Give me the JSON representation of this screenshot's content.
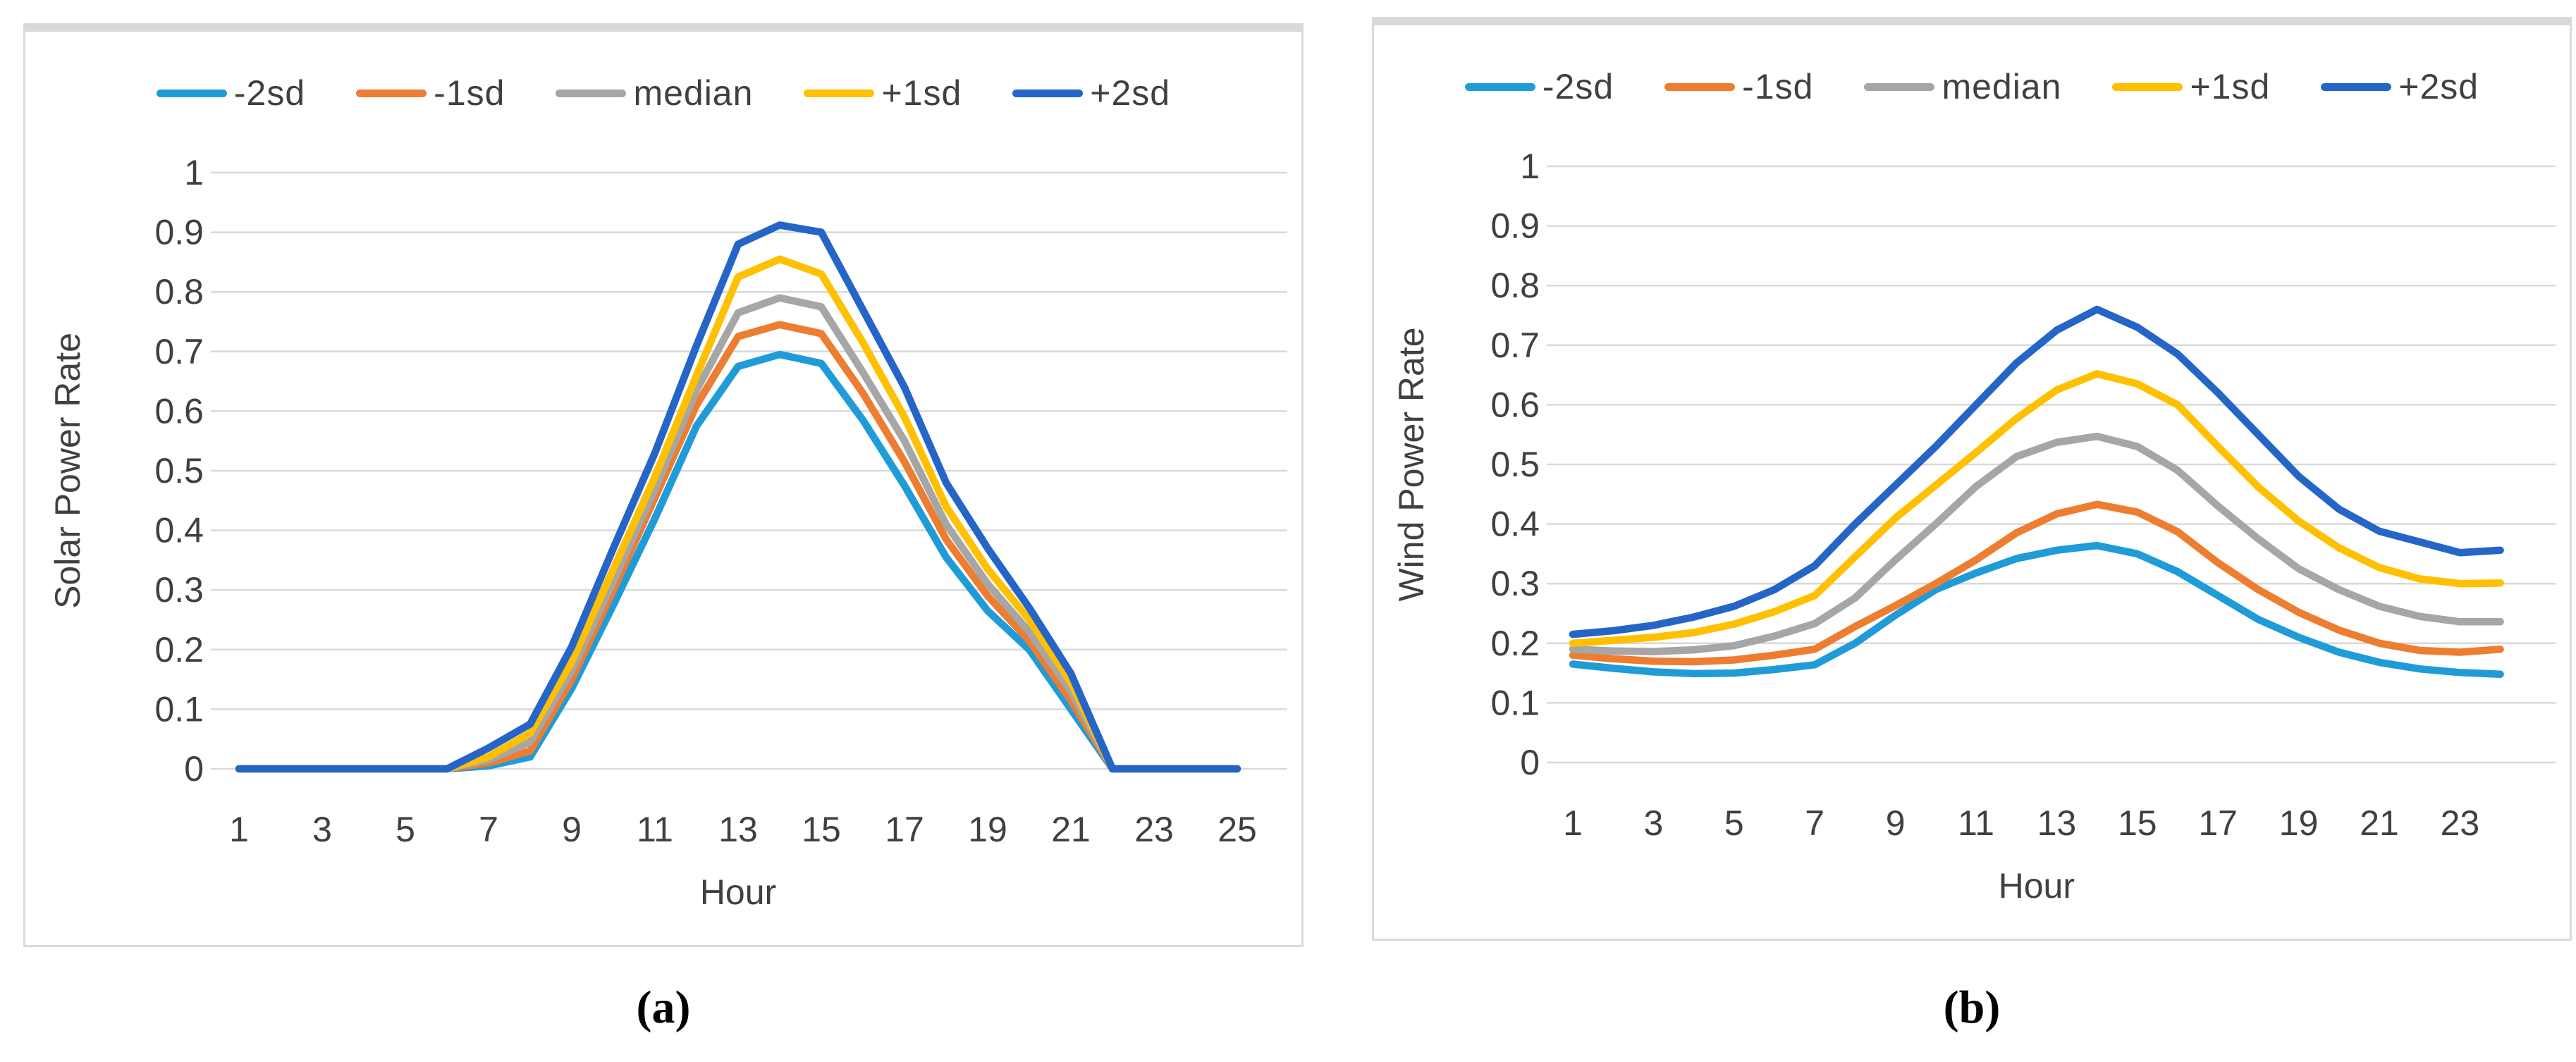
{
  "page": {
    "background": "#ffffff"
  },
  "colors": {
    "grid": "#d9d9d9",
    "text": "#404040",
    "panel_border": "#d9d9d9",
    "caption_text": "#000000"
  },
  "legend": {
    "items": [
      {
        "label": "-2sd",
        "color": "#1f9cd8"
      },
      {
        "label": "-1sd",
        "color": "#ed7d31"
      },
      {
        "label": "median",
        "color": "#a6a6a6"
      },
      {
        "label": "+1sd",
        "color": "#ffc000"
      },
      {
        "label": "+2sd",
        "color": "#2565c7"
      }
    ]
  },
  "captions": {
    "a": "(a)",
    "b": "(b)"
  },
  "chart_data": [
    {
      "id": "a",
      "type": "line",
      "title": "",
      "xlabel": "Hour",
      "ylabel": "Solar Power Rate",
      "ylim": [
        0,
        1
      ],
      "grid": true,
      "legend_position": "top",
      "x": [
        1,
        2,
        3,
        4,
        5,
        6,
        7,
        8,
        9,
        10,
        11,
        12,
        13,
        14,
        15,
        16,
        17,
        18,
        19,
        20,
        21,
        22,
        23,
        24,
        25
      ],
      "xticks": [
        1,
        3,
        5,
        7,
        9,
        11,
        13,
        15,
        17,
        19,
        21,
        23,
        25
      ],
      "yticks": [
        0,
        0.1,
        0.2,
        0.3,
        0.4,
        0.5,
        0.6,
        0.7,
        0.8,
        0.9,
        1
      ],
      "series": [
        {
          "name": "-2sd",
          "color": "#1f9cd8",
          "values": [
            0,
            0,
            0,
            0,
            0,
            0,
            0.005,
            0.02,
            0.135,
            0.275,
            0.42,
            0.575,
            0.675,
            0.695,
            0.68,
            0.585,
            0.475,
            0.355,
            0.265,
            0.2,
            0.1,
            0,
            0,
            0,
            0
          ]
        },
        {
          "name": "-1sd",
          "color": "#ed7d31",
          "values": [
            0,
            0,
            0,
            0,
            0,
            0,
            0.01,
            0.03,
            0.15,
            0.3,
            0.455,
            0.61,
            0.725,
            0.745,
            0.73,
            0.63,
            0.515,
            0.385,
            0.29,
            0.215,
            0.115,
            0,
            0,
            0,
            0
          ]
        },
        {
          "name": "median",
          "color": "#a6a6a6",
          "values": [
            0,
            0,
            0,
            0,
            0,
            0,
            0.015,
            0.045,
            0.165,
            0.315,
            0.47,
            0.635,
            0.765,
            0.79,
            0.775,
            0.665,
            0.55,
            0.41,
            0.31,
            0.23,
            0.13,
            0,
            0,
            0,
            0
          ]
        },
        {
          "name": "+1sd",
          "color": "#ffc000",
          "values": [
            0,
            0,
            0,
            0,
            0,
            0,
            0.02,
            0.06,
            0.18,
            0.335,
            0.49,
            0.66,
            0.825,
            0.855,
            0.83,
            0.715,
            0.59,
            0.44,
            0.335,
            0.25,
            0.145,
            0,
            0,
            0,
            0
          ]
        },
        {
          "name": "+2sd",
          "color": "#2565c7",
          "values": [
            0,
            0,
            0,
            0,
            0,
            0,
            0.035,
            0.075,
            0.205,
            0.37,
            0.53,
            0.71,
            0.88,
            0.912,
            0.9,
            0.77,
            0.64,
            0.48,
            0.37,
            0.27,
            0.16,
            0,
            0,
            0,
            0
          ]
        }
      ]
    },
    {
      "id": "b",
      "type": "line",
      "title": "",
      "xlabel": "Hour",
      "ylabel": "Wind Power Rate",
      "ylim": [
        0,
        1
      ],
      "grid": true,
      "legend_position": "top",
      "x": [
        1,
        2,
        3,
        4,
        5,
        6,
        7,
        8,
        9,
        10,
        11,
        12,
        13,
        14,
        15,
        16,
        17,
        18,
        19,
        20,
        21,
        22,
        23,
        24
      ],
      "xticks": [
        1,
        3,
        5,
        7,
        9,
        11,
        13,
        15,
        17,
        19,
        21,
        23
      ],
      "yticks": [
        0,
        0.1,
        0.2,
        0.3,
        0.4,
        0.5,
        0.6,
        0.7,
        0.8,
        0.9,
        1
      ],
      "series": [
        {
          "name": "-2sd",
          "color": "#1f9cd8",
          "values": [
            0.165,
            0.158,
            0.152,
            0.149,
            0.15,
            0.156,
            0.164,
            0.2,
            0.247,
            0.29,
            0.318,
            0.342,
            0.356,
            0.364,
            0.35,
            0.32,
            0.28,
            0.24,
            0.21,
            0.185,
            0.168,
            0.157,
            0.151,
            0.148
          ]
        },
        {
          "name": "-1sd",
          "color": "#ed7d31",
          "values": [
            0.18,
            0.174,
            0.17,
            0.169,
            0.172,
            0.18,
            0.19,
            0.228,
            0.263,
            0.3,
            0.34,
            0.385,
            0.417,
            0.433,
            0.42,
            0.387,
            0.335,
            0.29,
            0.252,
            0.222,
            0.2,
            0.188,
            0.185,
            0.19
          ]
        },
        {
          "name": "median",
          "color": "#a6a6a6",
          "values": [
            0.19,
            0.187,
            0.186,
            0.189,
            0.196,
            0.212,
            0.233,
            0.276,
            0.34,
            0.4,
            0.463,
            0.513,
            0.537,
            0.547,
            0.53,
            0.49,
            0.43,
            0.375,
            0.325,
            0.29,
            0.262,
            0.245,
            0.236,
            0.236
          ]
        },
        {
          "name": "+1sd",
          "color": "#ffc000",
          "values": [
            0.2,
            0.205,
            0.21,
            0.218,
            0.232,
            0.253,
            0.28,
            0.345,
            0.41,
            0.465,
            0.52,
            0.577,
            0.625,
            0.652,
            0.635,
            0.6,
            0.53,
            0.462,
            0.405,
            0.36,
            0.327,
            0.308,
            0.3,
            0.301
          ]
        },
        {
          "name": "+2sd",
          "color": "#2565c7",
          "values": [
            0.215,
            0.221,
            0.23,
            0.244,
            0.262,
            0.29,
            0.33,
            0.4,
            0.465,
            0.53,
            0.6,
            0.67,
            0.725,
            0.76,
            0.73,
            0.685,
            0.62,
            0.55,
            0.48,
            0.425,
            0.388,
            0.37,
            0.352,
            0.356
          ]
        }
      ]
    }
  ]
}
